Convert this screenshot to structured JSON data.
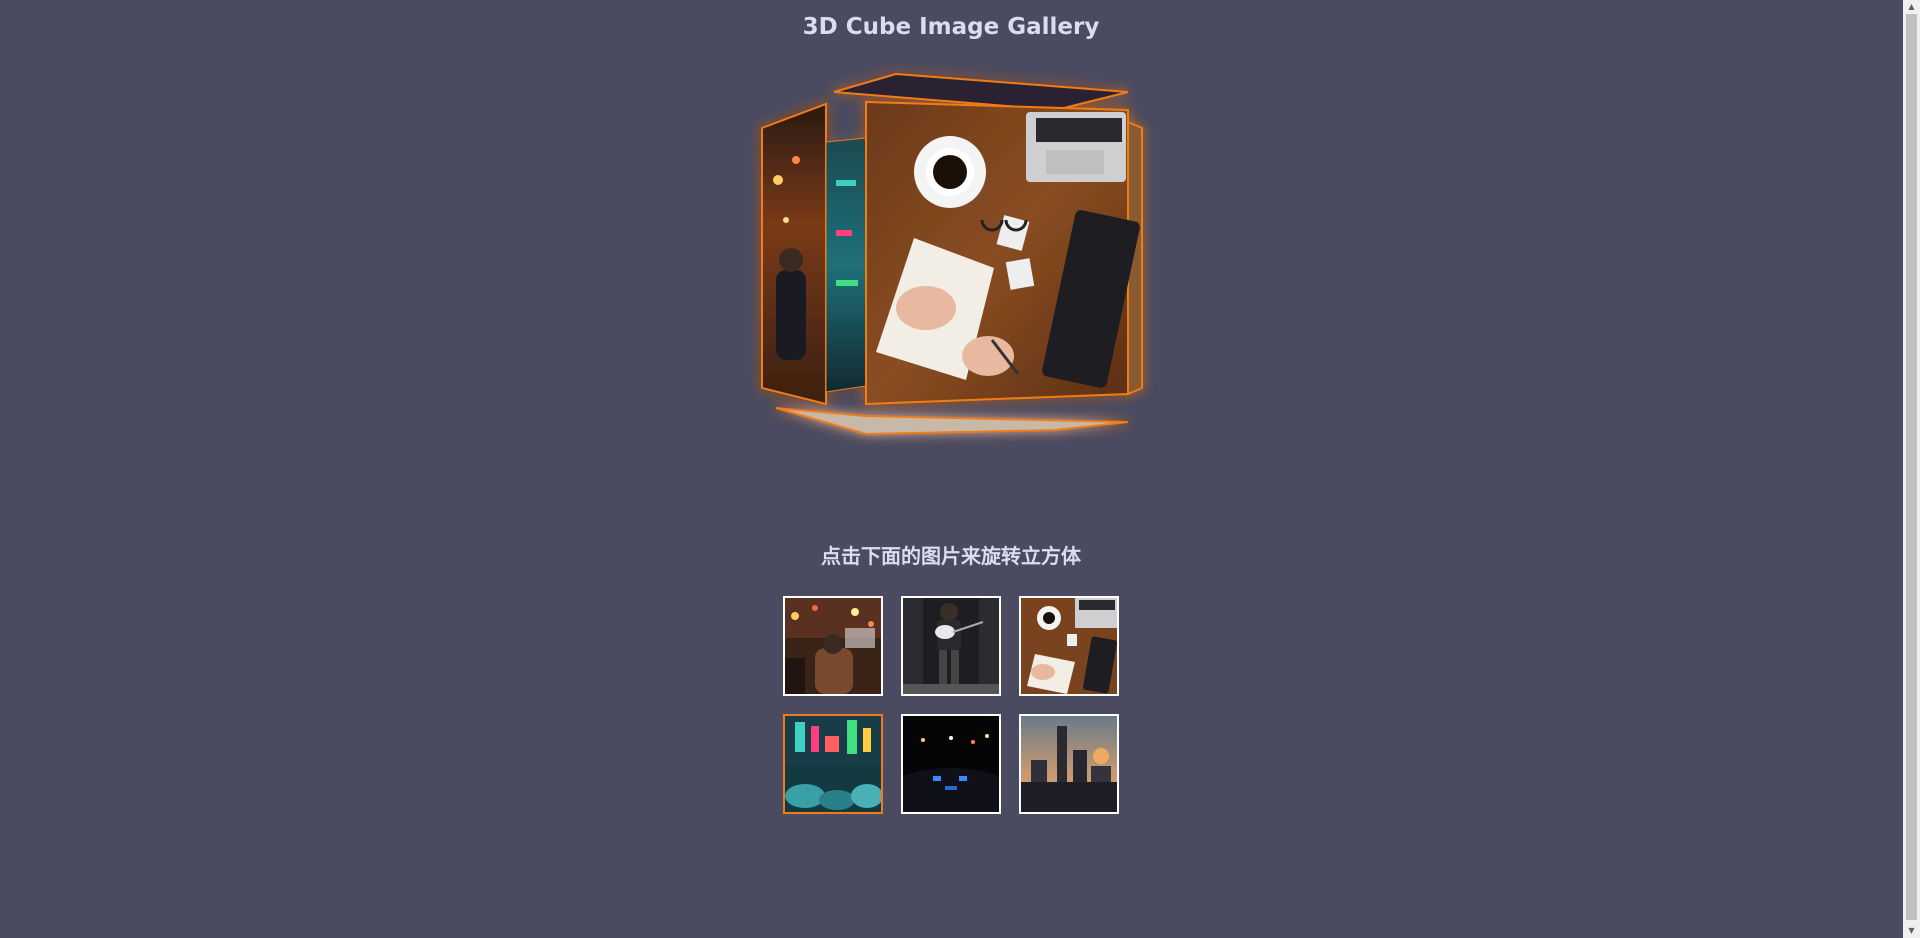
{
  "header": {
    "title": "3D Cube Image Gallery"
  },
  "cube": {
    "front_face_image": "workspace-desk-photo",
    "left_face_image": "city-street-night-photo",
    "glow_color": "#f07b18"
  },
  "instructions": {
    "text": "点击下面的图片来旋转立方体"
  },
  "thumbnails": [
    {
      "image": "night-street-crowd-photo",
      "active": false
    },
    {
      "image": "guitarist-photo",
      "active": false
    },
    {
      "image": "desk-coffee-laptop-photo",
      "active": false
    },
    {
      "image": "neon-street-umbrellas-photo",
      "active": true
    },
    {
      "image": "night-driving-dashboard-photo",
      "active": false
    },
    {
      "image": "city-skyline-sunset-photo",
      "active": false
    }
  ],
  "colors": {
    "background": "#4a4a60",
    "active_border": "#f07b18",
    "thumb_border": "#ffffff"
  }
}
